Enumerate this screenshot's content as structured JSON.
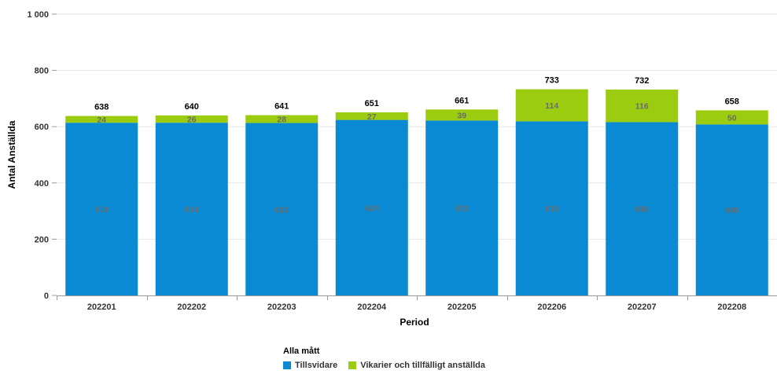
{
  "chart_data": {
    "type": "bar",
    "stacked": true,
    "categories": [
      "202201",
      "202202",
      "202203",
      "202204",
      "202205",
      "202206",
      "202207",
      "202208"
    ],
    "series": [
      {
        "name": "Tillsvidare",
        "color": "#0a8ad2",
        "values": [
          614,
          614,
          613,
          624,
          622,
          619,
          616,
          608
        ]
      },
      {
        "name": "Vikarier och tillfälligt anställda",
        "color": "#9ccc10",
        "values": [
          24,
          26,
          28,
          27,
          39,
          114,
          116,
          50
        ]
      }
    ],
    "totals": [
      638,
      640,
      641,
      651,
      661,
      733,
      732,
      658
    ],
    "xlabel": "Period",
    "ylabel": "Antal Anställda",
    "ylim": [
      0,
      1000
    ],
    "yticks": [
      0,
      200,
      400,
      600,
      800,
      1000
    ],
    "ytick_labels": [
      "0",
      "200",
      "400",
      "600",
      "800",
      "1 000"
    ],
    "grid": true,
    "legend_title": "Alla mått",
    "legend_position": "bottom"
  }
}
